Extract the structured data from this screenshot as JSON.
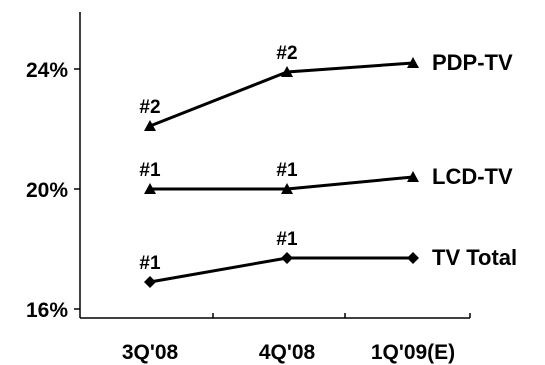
{
  "chart_data": {
    "type": "line",
    "categories": [
      "3Q'08",
      "4Q'08",
      "1Q'09(E)"
    ],
    "y_ticks": [
      "16%",
      "20%",
      "24%"
    ],
    "ylim": [
      16,
      26
    ],
    "grid": false,
    "series": [
      {
        "name": "PDP-TV",
        "values": [
          22.1,
          23.9,
          24.2
        ],
        "marker": "triangle",
        "point_labels": [
          "#2",
          "#2",
          ""
        ]
      },
      {
        "name": "LCD-TV",
        "values": [
          20.0,
          20.0,
          20.4
        ],
        "marker": "triangle",
        "point_labels": [
          "#1",
          "#1",
          ""
        ]
      },
      {
        "name": "TV Total",
        "values": [
          16.9,
          17.7,
          17.7
        ],
        "marker": "diamond",
        "point_labels": [
          "#1",
          "#1",
          ""
        ]
      }
    ],
    "colors": {
      "line": "#000000",
      "axis": "#000000"
    }
  }
}
